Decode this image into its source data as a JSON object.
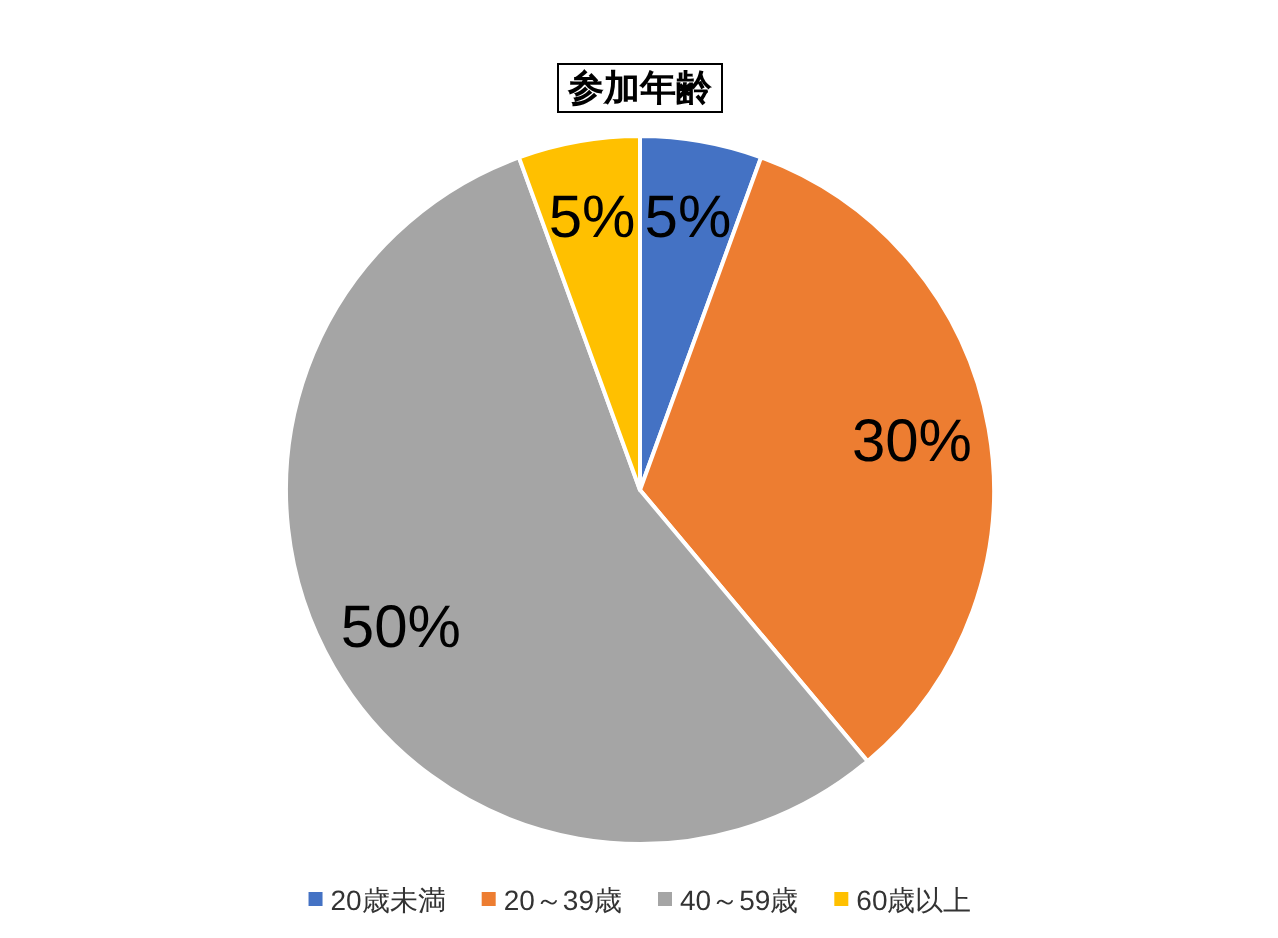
{
  "chart_data": {
    "type": "pie",
    "title": "参加年齢",
    "categories": [
      "20歳未満",
      "20～39歳",
      "40～59歳",
      "60歳以上"
    ],
    "values": [
      5,
      30,
      50,
      5
    ],
    "value_labels": [
      "5%",
      "30%",
      "50%",
      "5%"
    ],
    "colors": [
      "#4472c4",
      "#ed7d31",
      "#a5a5a5",
      "#ffc000"
    ],
    "legend": "bottom"
  }
}
